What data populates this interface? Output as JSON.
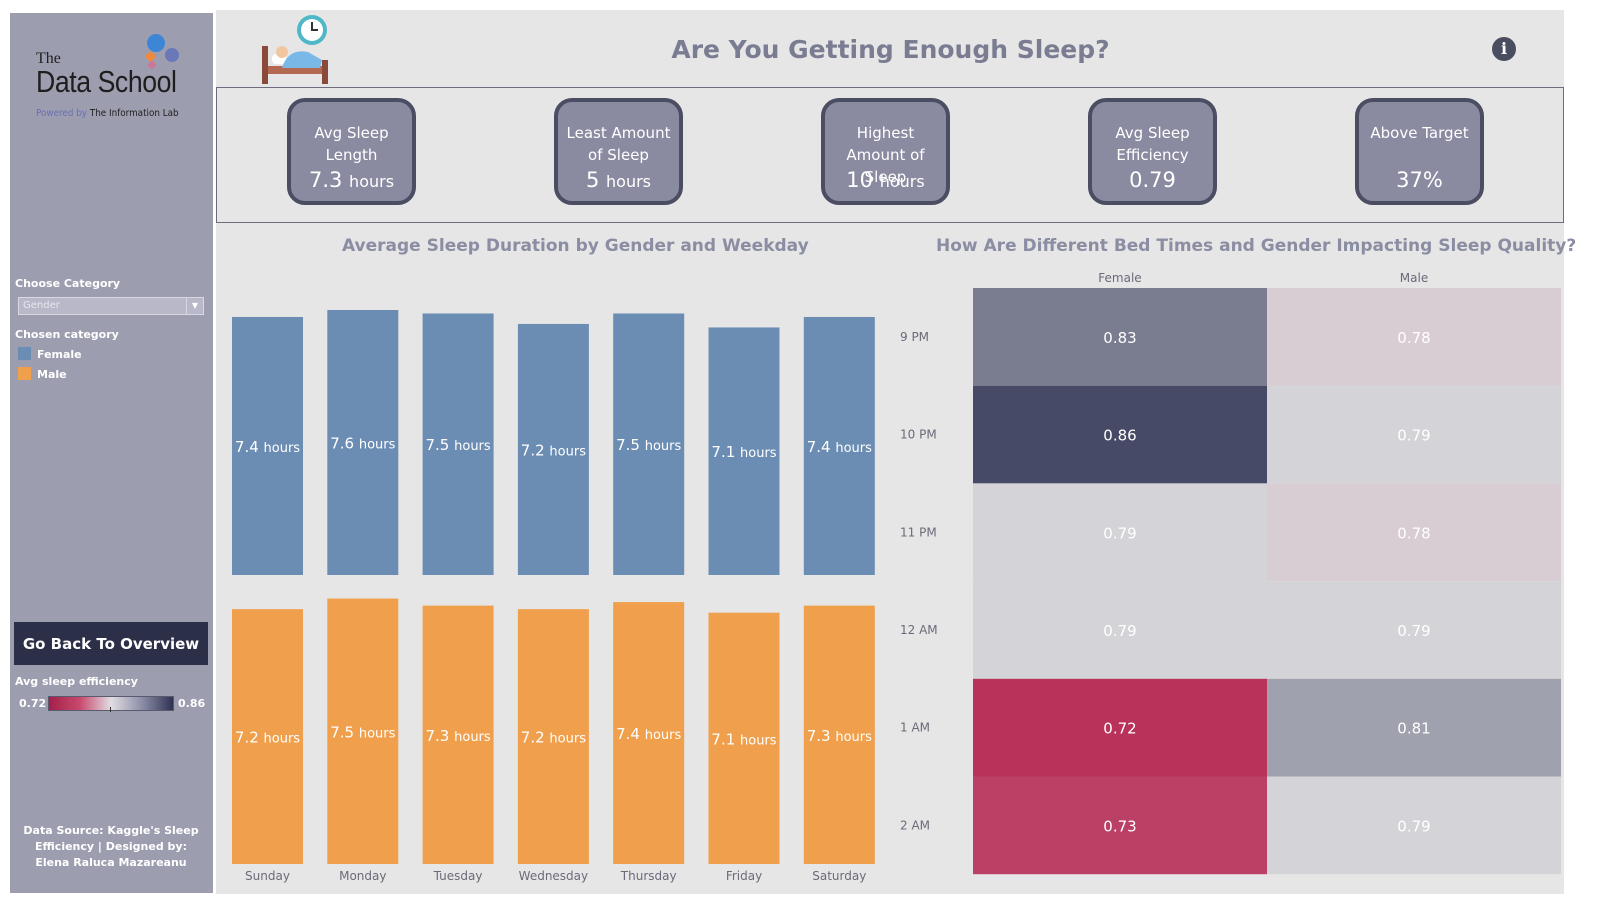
{
  "brand": {
    "the": "The",
    "name": "Data School",
    "powered_prefix": "Powered by",
    "powered_company": "The Information Lab"
  },
  "filters": {
    "category_label": "Choose Category",
    "category_value": "Gender",
    "chosen_label": "Chosen category",
    "legend": [
      {
        "label": "Female",
        "color": "#6b8db3"
      },
      {
        "label": "Male",
        "color": "#f0a04c"
      }
    ]
  },
  "back_button": "Go Back To Overview",
  "efficiency_legend": {
    "title": "Avg sleep efficiency",
    "min": "0.72",
    "max": "0.86"
  },
  "footer_note": "Data Source: Kaggle's Sleep Efficiency | Designed by: Elena Raluca Mazareanu",
  "title": "Are You Getting Enough Sleep?",
  "kpis": [
    {
      "label": "Avg Sleep Length",
      "value": "7.3",
      "unit": "hours"
    },
    {
      "label": "Least Amount of Sleep",
      "value": "5",
      "unit": "hours"
    },
    {
      "label": "Highest Amount of Sleep",
      "value": "10",
      "unit": "hours"
    },
    {
      "label": "Avg Sleep Efficiency",
      "value": "0.79",
      "unit": ""
    },
    {
      "label": "Above Target",
      "value": "37%",
      "unit": ""
    }
  ],
  "chart_data": [
    {
      "type": "bar",
      "title": "Average Sleep Duration by Gender and Weekday",
      "categories": [
        "Sunday",
        "Monday",
        "Tuesday",
        "Wednesday",
        "Thursday",
        "Friday",
        "Saturday"
      ],
      "series": [
        {
          "name": "Female",
          "color": "#6b8db3",
          "values": [
            7.4,
            7.6,
            7.5,
            7.2,
            7.5,
            7.1,
            7.4
          ]
        },
        {
          "name": "Male",
          "color": "#f0a04c",
          "values": [
            7.2,
            7.5,
            7.3,
            7.2,
            7.4,
            7.1,
            7.3
          ]
        }
      ],
      "unit_label": "hours",
      "grid": false
    },
    {
      "type": "heatmap",
      "title": "How Are Different Bed Times and Gender Impacting Sleep Quality?",
      "columns": [
        "Female",
        "Male"
      ],
      "rows": [
        "9 PM",
        "10 PM",
        "11 PM",
        "12 AM",
        "1 AM",
        "2 AM"
      ],
      "values": [
        [
          0.83,
          0.78
        ],
        [
          0.86,
          0.79
        ],
        [
          0.79,
          0.78
        ],
        [
          0.79,
          0.79
        ],
        [
          0.72,
          0.81
        ],
        [
          0.73,
          0.79
        ]
      ],
      "color_range": [
        0.72,
        0.86
      ],
      "color_low": "#b8325a",
      "color_high": "#474a66"
    }
  ]
}
